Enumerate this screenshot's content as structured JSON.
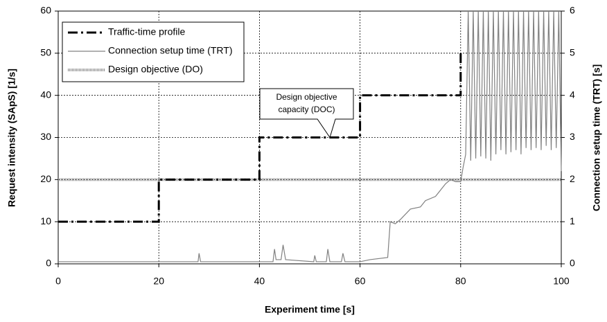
{
  "chart_data": {
    "type": "line",
    "x_label": "Experiment time [s]",
    "y_label": "Request intensity (SApS) [1/s]",
    "y2_label": "Connection setup time (TRT) [s]",
    "xlim": [
      0,
      100
    ],
    "xticks": [
      0,
      20,
      40,
      60,
      80,
      100
    ],
    "ylim": [
      0,
      60
    ],
    "yticks": [
      0,
      10,
      20,
      30,
      40,
      50,
      60
    ],
    "y2lim": [
      0,
      6
    ],
    "y2ticks": [
      0,
      1,
      2,
      3,
      4,
      5,
      6
    ],
    "grid": true,
    "legend": "top-left",
    "annotation": {
      "lines": [
        "Design objective",
        "capacity (DOC)"
      ],
      "x": 54,
      "y": 30
    },
    "series": [
      {
        "name": "Traffic-time profile",
        "color": "#000000",
        "line_style": "dash-dot",
        "axis": "y",
        "x": [
          0,
          20,
          20,
          40,
          40,
          60,
          60,
          80,
          80
        ],
        "values": [
          10,
          10,
          20,
          20,
          30,
          30,
          40,
          40,
          50
        ]
      },
      {
        "name": "Connection setup time (TRT)",
        "color": "#808080",
        "line_style": "solid",
        "axis": "y2",
        "x": [
          0,
          10,
          20,
          27.8,
          28,
          28.3,
          35,
          40,
          42.7,
          43,
          43.3,
          44.3,
          44.7,
          45.2,
          50.8,
          51,
          51.3,
          53.3,
          53.6,
          54,
          56.3,
          56.6,
          57,
          60,
          62,
          65.5,
          66,
          67,
          68,
          70,
          72,
          73,
          75,
          76,
          77,
          78,
          79,
          80,
          80.5,
          81,
          81.5,
          82,
          82.5,
          83,
          83.5,
          84,
          84.5,
          85,
          85.5,
          86,
          86.5,
          87,
          87.5,
          88,
          88.5,
          89,
          89.5,
          90,
          90.5,
          91,
          91.5,
          92,
          92.5,
          93,
          93.5,
          94,
          94.5,
          95,
          95.5,
          96,
          96.5,
          97,
          97.5,
          98,
          98.5,
          99,
          99.5,
          100
        ],
        "values": [
          0.05,
          0.05,
          0.05,
          0.05,
          0.25,
          0.05,
          0.05,
          0.05,
          0.05,
          0.35,
          0.1,
          0.1,
          0.45,
          0.1,
          0.05,
          0.2,
          0.05,
          0.05,
          0.35,
          0.05,
          0.05,
          0.25,
          0.05,
          0.05,
          0.1,
          0.15,
          1.0,
          0.95,
          1.05,
          1.3,
          1.35,
          1.5,
          1.6,
          1.75,
          1.9,
          2.0,
          1.95,
          1.95,
          2.3,
          2.6,
          6,
          2.45,
          6,
          2.5,
          6,
          2.55,
          6,
          2.5,
          6,
          2.45,
          6,
          2.6,
          6,
          2.7,
          6,
          2.6,
          6,
          2.65,
          6,
          2.7,
          6,
          2.6,
          6,
          2.75,
          6,
          2.7,
          6,
          2.75,
          6,
          2.7,
          6,
          2.8,
          6,
          2.7,
          6,
          2.75,
          6,
          2.2
        ]
      },
      {
        "name": "Design objective (DO)",
        "color": "#888888",
        "line_style": "double",
        "axis": "y",
        "x": [
          0,
          100
        ],
        "values": [
          20,
          20
        ]
      }
    ]
  }
}
